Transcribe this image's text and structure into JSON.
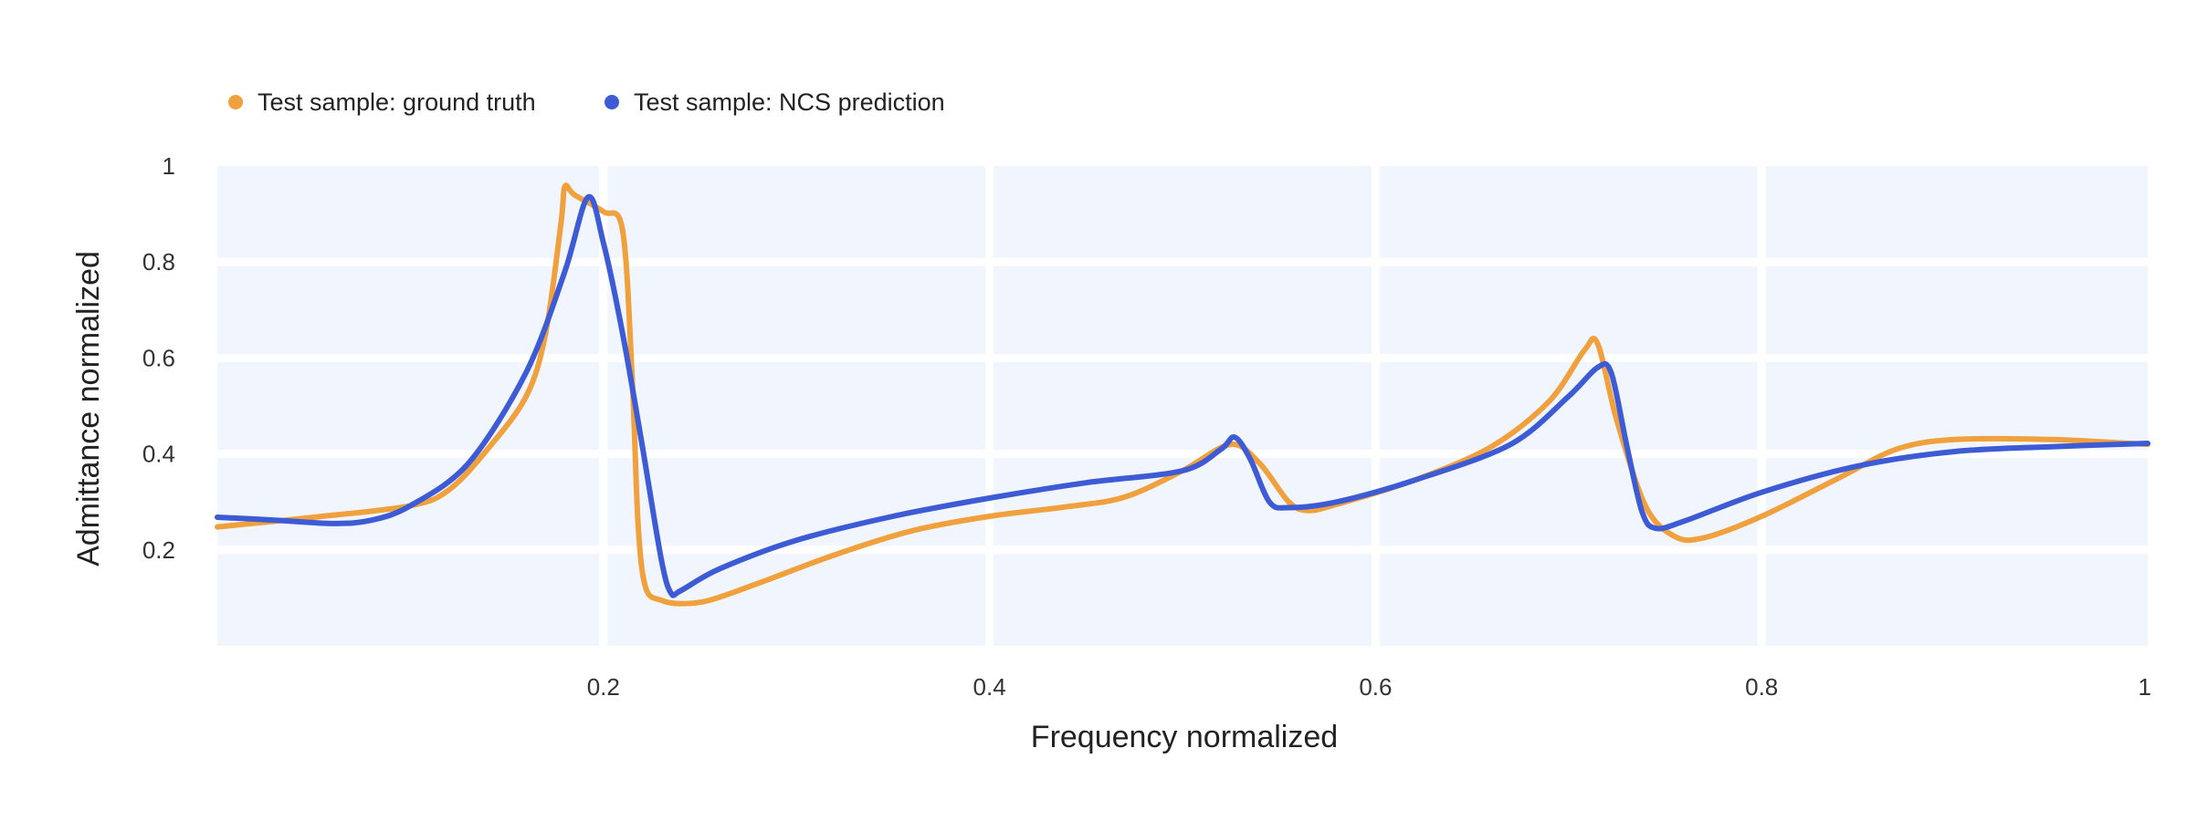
{
  "chart_data": {
    "type": "line",
    "xlabel": "Frequency normalized",
    "ylabel": "Admittance normalized",
    "xlim": [
      0,
      1
    ],
    "ylim": [
      0,
      1
    ],
    "x_ticks": [
      {
        "value": 0.2,
        "label": "0.2"
      },
      {
        "value": 0.4,
        "label": "0.4"
      },
      {
        "value": 0.6,
        "label": "0.6"
      },
      {
        "value": 0.8,
        "label": "0.8"
      },
      {
        "value": 1.0,
        "label": "1"
      }
    ],
    "y_ticks": [
      {
        "value": 0.2,
        "label": "0.2"
      },
      {
        "value": 0.4,
        "label": "0.4"
      },
      {
        "value": 0.6,
        "label": "0.6"
      },
      {
        "value": 0.8,
        "label": "0.8"
      },
      {
        "value": 1.0,
        "label": "1"
      }
    ],
    "grid": true,
    "legend_position": "top-left",
    "series": [
      {
        "name": "Test sample: ground truth",
        "color": "#F0A03C",
        "points": [
          [
            0.0,
            0.248
          ],
          [
            0.05,
            0.268
          ],
          [
            0.1,
            0.292
          ],
          [
            0.12,
            0.325
          ],
          [
            0.14,
            0.41
          ],
          [
            0.16,
            0.52
          ],
          [
            0.17,
            0.65
          ],
          [
            0.178,
            0.88
          ],
          [
            0.18,
            0.957
          ],
          [
            0.185,
            0.94
          ],
          [
            0.2,
            0.905
          ],
          [
            0.21,
            0.865
          ],
          [
            0.215,
            0.55
          ],
          [
            0.218,
            0.25
          ],
          [
            0.222,
            0.12
          ],
          [
            0.23,
            0.095
          ],
          [
            0.24,
            0.088
          ],
          [
            0.255,
            0.095
          ],
          [
            0.28,
            0.13
          ],
          [
            0.32,
            0.19
          ],
          [
            0.36,
            0.24
          ],
          [
            0.4,
            0.27
          ],
          [
            0.44,
            0.29
          ],
          [
            0.47,
            0.31
          ],
          [
            0.5,
            0.365
          ],
          [
            0.525,
            0.42
          ],
          [
            0.54,
            0.38
          ],
          [
            0.555,
            0.3
          ],
          [
            0.565,
            0.282
          ],
          [
            0.58,
            0.295
          ],
          [
            0.62,
            0.345
          ],
          [
            0.66,
            0.415
          ],
          [
            0.69,
            0.51
          ],
          [
            0.708,
            0.615
          ],
          [
            0.715,
            0.63
          ],
          [
            0.725,
            0.47
          ],
          [
            0.74,
            0.29
          ],
          [
            0.755,
            0.228
          ],
          [
            0.77,
            0.225
          ],
          [
            0.8,
            0.27
          ],
          [
            0.84,
            0.35
          ],
          [
            0.87,
            0.41
          ],
          [
            0.9,
            0.43
          ],
          [
            0.95,
            0.43
          ],
          [
            1.0,
            0.42
          ]
        ]
      },
      {
        "name": "Test sample: NCS prediction",
        "color": "#3E5BD6",
        "points": [
          [
            0.0,
            0.268
          ],
          [
            0.03,
            0.262
          ],
          [
            0.06,
            0.255
          ],
          [
            0.08,
            0.262
          ],
          [
            0.1,
            0.292
          ],
          [
            0.13,
            0.38
          ],
          [
            0.16,
            0.57
          ],
          [
            0.18,
            0.78
          ],
          [
            0.192,
            0.935
          ],
          [
            0.2,
            0.84
          ],
          [
            0.21,
            0.65
          ],
          [
            0.22,
            0.42
          ],
          [
            0.23,
            0.18
          ],
          [
            0.235,
            0.11
          ],
          [
            0.24,
            0.115
          ],
          [
            0.26,
            0.16
          ],
          [
            0.3,
            0.22
          ],
          [
            0.35,
            0.27
          ],
          [
            0.4,
            0.308
          ],
          [
            0.45,
            0.34
          ],
          [
            0.5,
            0.365
          ],
          [
            0.52,
            0.41
          ],
          [
            0.527,
            0.435
          ],
          [
            0.535,
            0.39
          ],
          [
            0.545,
            0.3
          ],
          [
            0.555,
            0.288
          ],
          [
            0.58,
            0.3
          ],
          [
            0.62,
            0.345
          ],
          [
            0.67,
            0.42
          ],
          [
            0.7,
            0.52
          ],
          [
            0.715,
            0.58
          ],
          [
            0.722,
            0.57
          ],
          [
            0.73,
            0.42
          ],
          [
            0.738,
            0.28
          ],
          [
            0.745,
            0.245
          ],
          [
            0.76,
            0.26
          ],
          [
            0.8,
            0.32
          ],
          [
            0.85,
            0.375
          ],
          [
            0.9,
            0.405
          ],
          [
            0.95,
            0.415
          ],
          [
            1.0,
            0.422
          ]
        ]
      }
    ]
  }
}
